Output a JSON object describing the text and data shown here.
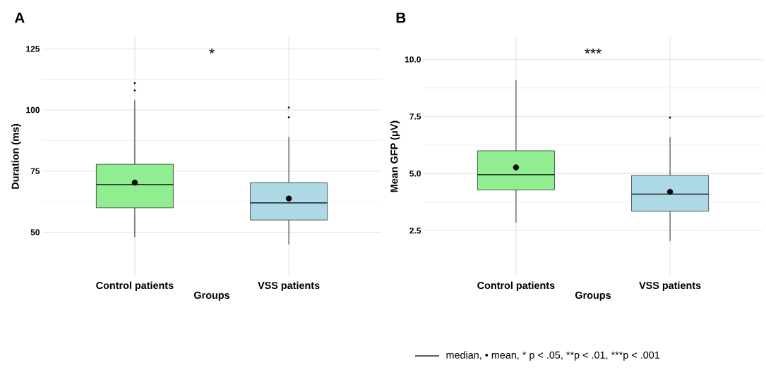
{
  "chart_data": [
    {
      "type": "box",
      "title": "A",
      "xlabel": "Groups",
      "ylabel": "Duration (ms)",
      "categories": [
        "Control patients",
        "VSS patients"
      ],
      "boxes": [
        {
          "low": 48,
          "q1": 60,
          "median": 69.5,
          "q3": 77.8,
          "high": 104,
          "mean": 70.3,
          "outliers": [
            111,
            108
          ]
        },
        {
          "low": 45,
          "q1": 55,
          "median": 62,
          "q3": 70.3,
          "high": 89,
          "mean": 63.8,
          "outliers": [
            101,
            97
          ]
        }
      ],
      "colors": [
        "#90ee90",
        "#add8e6"
      ],
      "ylim": [
        32,
        130
      ],
      "yticks": [
        50,
        75,
        100,
        125
      ],
      "grid": true,
      "annotations": [
        "*"
      ]
    },
    {
      "type": "box",
      "title": "B",
      "xlabel": "Groups",
      "ylabel": "Mean GFP (μV)",
      "categories": [
        "Control patients",
        "VSS patients"
      ],
      "boxes": [
        {
          "low": 2.85,
          "q1": 4.28,
          "median": 4.95,
          "q3": 6.0,
          "high": 9.1,
          "mean": 5.27
        },
        {
          "low": 2.05,
          "q1": 3.35,
          "median": 4.1,
          "q3": 4.92,
          "high": 6.6,
          "mean": 4.2,
          "outliers": [
            7.45
          ]
        }
      ],
      "colors": [
        "#90ee90",
        "#add8e6"
      ],
      "ylim": [
        0.5,
        11
      ],
      "yticks": [
        {
          "value": 2.5,
          "label": "2.5"
        },
        {
          "value": 5,
          "label": "5.0"
        },
        {
          "value": 7.5,
          "label": "7.5"
        },
        {
          "value": 10,
          "label": "10.0"
        }
      ],
      "grid": true,
      "annotations": [
        "***",
        "median,",
        "• mean,",
        "* p < .05,",
        "**p < .01,",
        "***p < .001"
      ]
    }
  ]
}
